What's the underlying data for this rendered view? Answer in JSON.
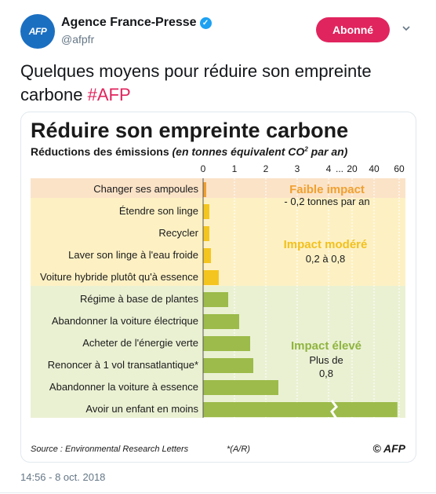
{
  "tweet": {
    "avatar_text": "AFP",
    "author_name": "Agence France-Presse",
    "verified_glyph": "✓",
    "handle": "@afpfr",
    "follow_label": "Abonné",
    "text": "Quelques moyens pour réduire son empreinte carbone ",
    "hashtag": "#AFP",
    "timestamp": "14:56 - 8 oct. 2018"
  },
  "colors": {
    "follow_button": "#e0245e",
    "bar_low": "#f0a030",
    "bar_moderate": "#f5c51f",
    "bar_high": "#9cbb4a",
    "band_low": "#fbe3c8",
    "band_moderate": "#fdf1c4",
    "band_high": "#eaf1d3",
    "label_low": "#f0a030",
    "label_moderate": "#f2c01d",
    "label_high": "#8fb43f"
  },
  "chart_data": {
    "type": "bar",
    "orientation": "horizontal",
    "title": "Réduire son empreinte carbone",
    "subtitle_main": "Réductions des émissions",
    "subtitle_italic": "(en tonnes équivalent CO",
    "subtitle_sup": "2",
    "subtitle_end": " par an)",
    "x_ticks": [
      "0",
      "1",
      "2",
      "3",
      "4",
      "...",
      "20",
      "40",
      "60"
    ],
    "xlim": [
      0,
      60
    ],
    "axis_break_between": [
      4,
      20
    ],
    "categories": [
      "Changer ses ampoules",
      "Étendre son linge",
      "Recycler",
      "Laver son linge à l'eau froide",
      "Voiture hybride plutôt qu'à essence",
      "Régime à base de plantes",
      "Abandonner la voiture électrique",
      "Acheter de l'énergie verte",
      "Renoncer à 1 vol transatlantique*",
      "Abandonner la voiture à essence",
      "Avoir un enfant en moins"
    ],
    "values": [
      0.1,
      0.2,
      0.2,
      0.25,
      0.5,
      0.8,
      1.15,
      1.5,
      1.6,
      2.4,
      58.6
    ],
    "groups": [
      {
        "name": "Faible impact",
        "range_text": "- 0,2 tonnes par an",
        "category_count": 1
      },
      {
        "name": "Impact modéré",
        "range_text": "0,2 à 0,8",
        "category_count": 4
      },
      {
        "name": "Impact élevé",
        "range_text_1": "Plus de",
        "range_text_2": "0,8",
        "category_count": 6
      }
    ],
    "source": "Source : Environmental Research Letters",
    "footnote": "*(A/R)",
    "credit": "© AFP"
  }
}
